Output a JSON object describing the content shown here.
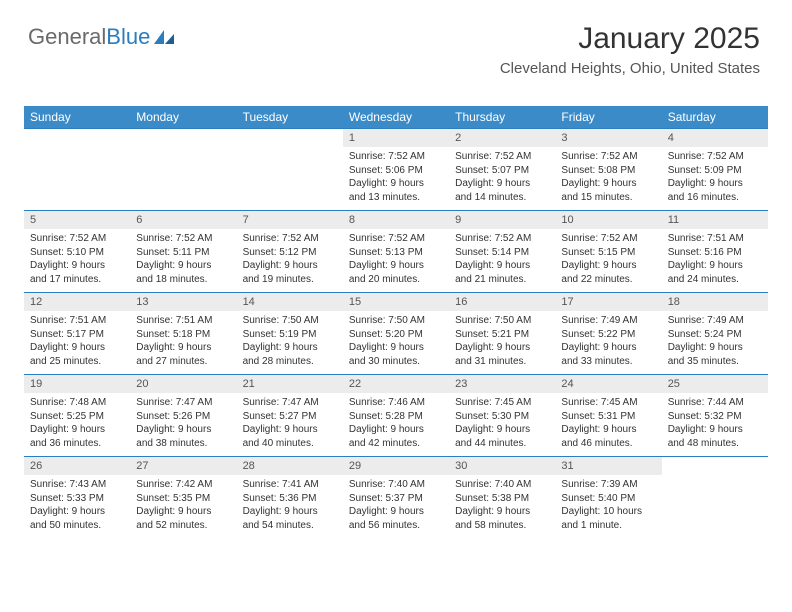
{
  "logo": {
    "word1": "General",
    "word2": "Blue"
  },
  "title": "January 2025",
  "location": "Cleveland Heights, Ohio, United States",
  "colors": {
    "header_bg": "#3b8bc9",
    "header_text": "#ffffff",
    "rule": "#2a7dc0",
    "daynum_bg": "#ececec",
    "logo_gray": "#6a6a6a",
    "logo_blue": "#2a7dc0"
  },
  "day_headers": [
    "Sunday",
    "Monday",
    "Tuesday",
    "Wednesday",
    "Thursday",
    "Friday",
    "Saturday"
  ],
  "weeks": [
    [
      null,
      null,
      null,
      {
        "n": "1",
        "sr": "7:52 AM",
        "ss": "5:06 PM",
        "dl": "9 hours and 13 minutes."
      },
      {
        "n": "2",
        "sr": "7:52 AM",
        "ss": "5:07 PM",
        "dl": "9 hours and 14 minutes."
      },
      {
        "n": "3",
        "sr": "7:52 AM",
        "ss": "5:08 PM",
        "dl": "9 hours and 15 minutes."
      },
      {
        "n": "4",
        "sr": "7:52 AM",
        "ss": "5:09 PM",
        "dl": "9 hours and 16 minutes."
      }
    ],
    [
      {
        "n": "5",
        "sr": "7:52 AM",
        "ss": "5:10 PM",
        "dl": "9 hours and 17 minutes."
      },
      {
        "n": "6",
        "sr": "7:52 AM",
        "ss": "5:11 PM",
        "dl": "9 hours and 18 minutes."
      },
      {
        "n": "7",
        "sr": "7:52 AM",
        "ss": "5:12 PM",
        "dl": "9 hours and 19 minutes."
      },
      {
        "n": "8",
        "sr": "7:52 AM",
        "ss": "5:13 PM",
        "dl": "9 hours and 20 minutes."
      },
      {
        "n": "9",
        "sr": "7:52 AM",
        "ss": "5:14 PM",
        "dl": "9 hours and 21 minutes."
      },
      {
        "n": "10",
        "sr": "7:52 AM",
        "ss": "5:15 PM",
        "dl": "9 hours and 22 minutes."
      },
      {
        "n": "11",
        "sr": "7:51 AM",
        "ss": "5:16 PM",
        "dl": "9 hours and 24 minutes."
      }
    ],
    [
      {
        "n": "12",
        "sr": "7:51 AM",
        "ss": "5:17 PM",
        "dl": "9 hours and 25 minutes."
      },
      {
        "n": "13",
        "sr": "7:51 AM",
        "ss": "5:18 PM",
        "dl": "9 hours and 27 minutes."
      },
      {
        "n": "14",
        "sr": "7:50 AM",
        "ss": "5:19 PM",
        "dl": "9 hours and 28 minutes."
      },
      {
        "n": "15",
        "sr": "7:50 AM",
        "ss": "5:20 PM",
        "dl": "9 hours and 30 minutes."
      },
      {
        "n": "16",
        "sr": "7:50 AM",
        "ss": "5:21 PM",
        "dl": "9 hours and 31 minutes."
      },
      {
        "n": "17",
        "sr": "7:49 AM",
        "ss": "5:22 PM",
        "dl": "9 hours and 33 minutes."
      },
      {
        "n": "18",
        "sr": "7:49 AM",
        "ss": "5:24 PM",
        "dl": "9 hours and 35 minutes."
      }
    ],
    [
      {
        "n": "19",
        "sr": "7:48 AM",
        "ss": "5:25 PM",
        "dl": "9 hours and 36 minutes."
      },
      {
        "n": "20",
        "sr": "7:47 AM",
        "ss": "5:26 PM",
        "dl": "9 hours and 38 minutes."
      },
      {
        "n": "21",
        "sr": "7:47 AM",
        "ss": "5:27 PM",
        "dl": "9 hours and 40 minutes."
      },
      {
        "n": "22",
        "sr": "7:46 AM",
        "ss": "5:28 PM",
        "dl": "9 hours and 42 minutes."
      },
      {
        "n": "23",
        "sr": "7:45 AM",
        "ss": "5:30 PM",
        "dl": "9 hours and 44 minutes."
      },
      {
        "n": "24",
        "sr": "7:45 AM",
        "ss": "5:31 PM",
        "dl": "9 hours and 46 minutes."
      },
      {
        "n": "25",
        "sr": "7:44 AM",
        "ss": "5:32 PM",
        "dl": "9 hours and 48 minutes."
      }
    ],
    [
      {
        "n": "26",
        "sr": "7:43 AM",
        "ss": "5:33 PM",
        "dl": "9 hours and 50 minutes."
      },
      {
        "n": "27",
        "sr": "7:42 AM",
        "ss": "5:35 PM",
        "dl": "9 hours and 52 minutes."
      },
      {
        "n": "28",
        "sr": "7:41 AM",
        "ss": "5:36 PM",
        "dl": "9 hours and 54 minutes."
      },
      {
        "n": "29",
        "sr": "7:40 AM",
        "ss": "5:37 PM",
        "dl": "9 hours and 56 minutes."
      },
      {
        "n": "30",
        "sr": "7:40 AM",
        "ss": "5:38 PM",
        "dl": "9 hours and 58 minutes."
      },
      {
        "n": "31",
        "sr": "7:39 AM",
        "ss": "5:40 PM",
        "dl": "10 hours and 1 minute."
      },
      null
    ]
  ],
  "labels": {
    "sunrise": "Sunrise:",
    "sunset": "Sunset:",
    "daylight": "Daylight:"
  }
}
